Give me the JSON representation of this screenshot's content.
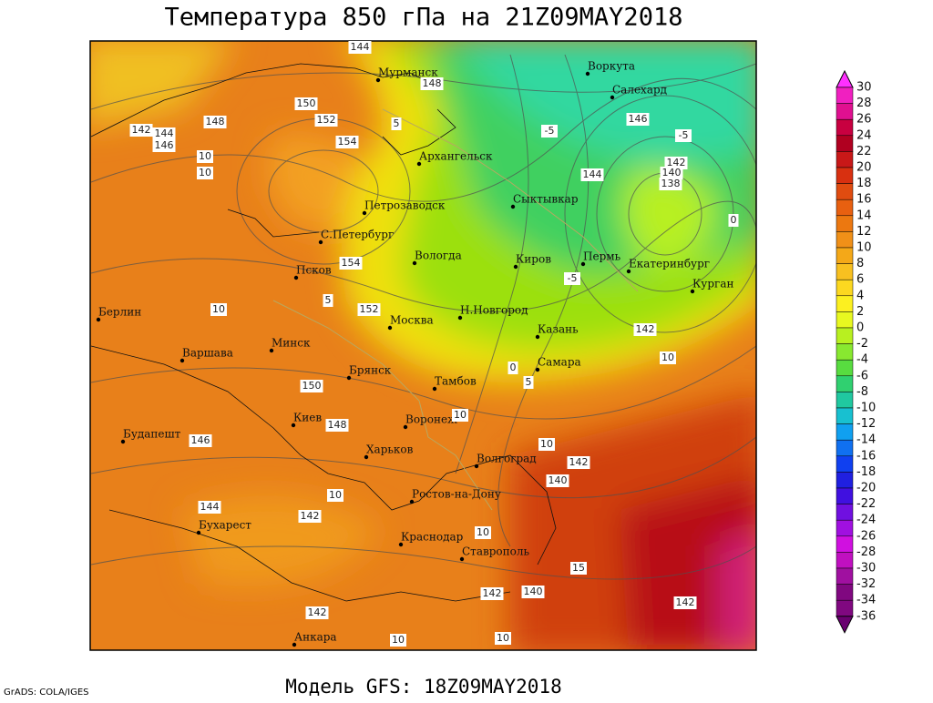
{
  "header": {
    "title": "Температура 850 гПа на 21Z09MAY2018"
  },
  "footer": {
    "model": "Модель GFS: 18Z09MAY2018",
    "credit": "GrADS: COLA/IGES"
  },
  "legend": {
    "labels": [
      "30",
      "28",
      "26",
      "24",
      "22",
      "20",
      "18",
      "16",
      "14",
      "12",
      "10",
      "8",
      "6",
      "4",
      "2",
      "0",
      "-2",
      "-4",
      "-6",
      "-8",
      "-10",
      "-12",
      "-14",
      "-16",
      "-18",
      "-20",
      "-22",
      "-24",
      "-26",
      "-28",
      "-30",
      "-32",
      "-34",
      "-36"
    ]
  },
  "cities": [
    "Мурманск",
    "Архангельск",
    "Воркута",
    "Салехард",
    "Сыктывкар",
    "Петрозаводск",
    "С.Петербург",
    "Вологда",
    "Киров",
    "Пермь",
    "Екатеринбург",
    "Курган",
    "Псков",
    "Берлин",
    "Москва",
    "Н.Новгород",
    "Казань",
    "Варшава",
    "Минск",
    "Брянск",
    "Самара",
    "Тамбов",
    "Киев",
    "Воронеж",
    "Будапешт",
    "Харьков",
    "Волгоград",
    "Ростов-на-Дону",
    "Бухарест",
    "Краснодар",
    "Ставрополь",
    "Анкара"
  ],
  "contour_labels": [
    "144",
    "148",
    "150",
    "152",
    "154",
    "148",
    "142",
    "144",
    "146",
    "10",
    "10",
    "5",
    "-5",
    "146",
    "-5",
    "144",
    "142",
    "140",
    "138",
    "0",
    "154",
    "5",
    "152",
    "10",
    "-5",
    "142",
    "10",
    "0",
    "5",
    "150",
    "148",
    "10",
    "146",
    "10",
    "142",
    "140",
    "10",
    "144",
    "142",
    "10",
    "15",
    "142",
    "140",
    "142",
    "142",
    "10",
    "10"
  ]
}
